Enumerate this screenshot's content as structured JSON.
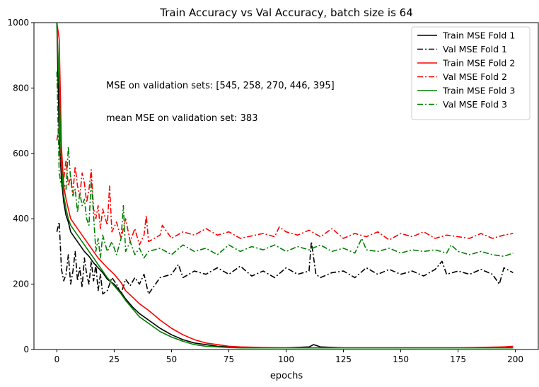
{
  "chart_data": {
    "type": "line",
    "title": "Train Accuracy vs Val Accuracy, batch size is 64",
    "xlabel": "epochs",
    "ylabel": "",
    "xlim": [
      -10,
      210
    ],
    "ylim": [
      0,
      1000
    ],
    "xticks": [
      0,
      25,
      50,
      75,
      100,
      125,
      150,
      175,
      200
    ],
    "yticks": [
      0,
      200,
      400,
      600,
      800,
      1000
    ],
    "grid": false,
    "legend_position": "top-right",
    "annotations": [
      "MSE on validation sets: [545, 258, 270, 446, 395]",
      "mean MSE on validation set: 383"
    ],
    "series": [
      {
        "name": "Train MSE Fold 1",
        "color": "#000000",
        "style": "solid",
        "x": [
          0,
          1,
          2,
          3,
          4,
          5,
          6,
          8,
          10,
          12,
          14,
          16,
          18,
          20,
          22,
          25,
          28,
          30,
          33,
          36,
          40,
          45,
          50,
          55,
          60,
          65,
          70,
          75,
          80,
          90,
          100,
          110,
          112,
          115,
          125,
          135,
          150,
          175,
          190,
          195,
          199
        ],
        "y": [
          1000,
          650,
          520,
          450,
          410,
          390,
          360,
          340,
          320,
          300,
          285,
          265,
          250,
          235,
          215,
          200,
          175,
          155,
          130,
          110,
          90,
          65,
          45,
          30,
          20,
          15,
          10,
          8,
          6,
          5,
          5,
          8,
          15,
          8,
          5,
          5,
          5,
          5,
          5,
          8,
          5
        ]
      },
      {
        "name": "Val MSE Fold 1",
        "color": "#000000",
        "style": "dashdot",
        "x": [
          0,
          1,
          2,
          3,
          4,
          5,
          6,
          7,
          8,
          9,
          10,
          11,
          12,
          13,
          14,
          15,
          16,
          17,
          18,
          19,
          20,
          22,
          24,
          26,
          28,
          30,
          32,
          34,
          36,
          38,
          40,
          45,
          50,
          53,
          55,
          60,
          65,
          70,
          75,
          80,
          85,
          90,
          95,
          100,
          105,
          110,
          111,
          113,
          115,
          120,
          125,
          130,
          135,
          140,
          145,
          150,
          155,
          160,
          165,
          168,
          170,
          175,
          180,
          185,
          190,
          193,
          195,
          199
        ],
        "y": [
          360,
          390,
          245,
          210,
          230,
          290,
          200,
          240,
          300,
          210,
          250,
          190,
          280,
          230,
          200,
          270,
          210,
          260,
          180,
          230,
          170,
          180,
          220,
          200,
          170,
          215,
          195,
          220,
          200,
          230,
          170,
          220,
          230,
          260,
          220,
          240,
          230,
          250,
          230,
          255,
          225,
          240,
          220,
          250,
          230,
          240,
          330,
          230,
          220,
          235,
          240,
          220,
          250,
          230,
          245,
          230,
          240,
          225,
          245,
          270,
          230,
          240,
          230,
          245,
          230,
          200,
          250,
          235
        ]
      },
      {
        "name": "Train MSE Fold 2",
        "color": "#ff0000",
        "style": "solid",
        "x": [
          0,
          1,
          2,
          3,
          4,
          5,
          6,
          8,
          10,
          12,
          14,
          16,
          18,
          20,
          22,
          25,
          28,
          30,
          33,
          36,
          40,
          45,
          50,
          55,
          60,
          65,
          70,
          75,
          80,
          90,
          100,
          110,
          125,
          150,
          175,
          195,
          199
        ],
        "y": [
          1000,
          950,
          620,
          500,
          460,
          430,
          400,
          380,
          360,
          340,
          320,
          300,
          280,
          265,
          250,
          230,
          205,
          180,
          160,
          140,
          120,
          90,
          65,
          45,
          30,
          20,
          15,
          10,
          8,
          6,
          5,
          5,
          5,
          5,
          5,
          8,
          10
        ]
      },
      {
        "name": "Val MSE Fold 2",
        "color": "#ff0000",
        "style": "dashdot",
        "x": [
          0,
          1,
          2,
          3,
          4,
          5,
          6,
          7,
          8,
          9,
          10,
          11,
          12,
          13,
          14,
          15,
          16,
          17,
          18,
          19,
          20,
          22,
          23,
          24,
          26,
          28,
          30,
          32,
          34,
          36,
          38,
          39,
          40,
          45,
          46,
          50,
          55,
          60,
          65,
          70,
          75,
          80,
          90,
          95,
          97,
          100,
          105,
          110,
          115,
          120,
          125,
          130,
          135,
          140,
          145,
          150,
          155,
          160,
          165,
          170,
          175,
          180,
          185,
          190,
          195,
          199
        ],
        "y": [
          640,
          680,
          550,
          520,
          580,
          500,
          530,
          480,
          560,
          500,
          470,
          540,
          510,
          450,
          490,
          550,
          430,
          400,
          440,
          370,
          430,
          380,
          500,
          360,
          390,
          340,
          400,
          330,
          370,
          320,
          350,
          410,
          330,
          350,
          380,
          340,
          360,
          350,
          370,
          350,
          360,
          340,
          355,
          345,
          375,
          360,
          350,
          365,
          345,
          370,
          340,
          355,
          345,
          360,
          335,
          355,
          345,
          360,
          340,
          350,
          345,
          340,
          355,
          340,
          350,
          355
        ]
      },
      {
        "name": "Train MSE Fold 3",
        "color": "#008000",
        "style": "solid",
        "x": [
          0,
          1,
          2,
          3,
          4,
          5,
          6,
          8,
          10,
          12,
          14,
          16,
          18,
          20,
          22,
          25,
          28,
          30,
          33,
          36,
          40,
          45,
          50,
          55,
          60,
          65,
          70,
          75,
          80,
          90,
          100,
          125,
          150,
          175,
          195,
          199
        ],
        "y": [
          1000,
          800,
          560,
          470,
          430,
          400,
          380,
          360,
          340,
          320,
          300,
          280,
          260,
          240,
          220,
          195,
          170,
          150,
          125,
          100,
          80,
          55,
          38,
          25,
          15,
          10,
          8,
          6,
          5,
          5,
          5,
          5,
          5,
          5,
          5,
          5
        ]
      },
      {
        "name": "Val MSE Fold 3",
        "color": "#008000",
        "style": "dashdot",
        "x": [
          0,
          1,
          2,
          3,
          4,
          5,
          6,
          7,
          8,
          9,
          10,
          11,
          12,
          13,
          14,
          15,
          16,
          17,
          18,
          19,
          20,
          22,
          24,
          26,
          28,
          29,
          30,
          32,
          34,
          36,
          38,
          40,
          45,
          50,
          55,
          60,
          65,
          70,
          75,
          80,
          85,
          90,
          95,
          100,
          105,
          110,
          115,
          120,
          125,
          130,
          133,
          135,
          140,
          145,
          150,
          155,
          160,
          165,
          170,
          172,
          175,
          180,
          185,
          190,
          195,
          199
        ],
        "y": [
          850,
          540,
          500,
          510,
          490,
          620,
          520,
          470,
          490,
          420,
          480,
          440,
          460,
          400,
          380,
          520,
          410,
          300,
          340,
          280,
          350,
          300,
          330,
          290,
          340,
          440,
          300,
          330,
          290,
          310,
          280,
          300,
          310,
          290,
          320,
          300,
          310,
          290,
          320,
          300,
          315,
          305,
          320,
          300,
          315,
          305,
          320,
          300,
          310,
          295,
          340,
          305,
          300,
          310,
          295,
          305,
          300,
          305,
          295,
          320,
          300,
          290,
          300,
          290,
          285,
          295
        ]
      }
    ]
  }
}
